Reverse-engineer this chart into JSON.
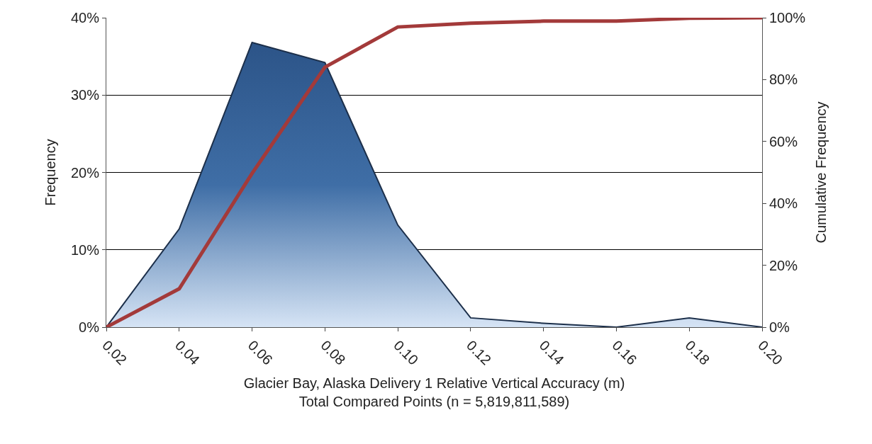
{
  "chart_data": {
    "type": "area",
    "xlabel": "Glacier Bay, Alaska Delivery 1 Relative Vertical Accuracy (m)\nTotal Compared Points (n = 5,819,811,589)",
    "ylabel": "Frequency",
    "y2label": "Cumulative Frequency",
    "categories": [
      "0.02",
      "0.04",
      "0.06",
      "0.08",
      "0.10",
      "0.12",
      "0.14",
      "0.16",
      "0.18",
      "0.20"
    ],
    "series": [
      {
        "axis": "y",
        "color": "#3f6ea6",
        "values": [
          0,
          12.7,
          36.8,
          34.2,
          13.2,
          1.2,
          0.5,
          0,
          1.2,
          0
        ]
      },
      {
        "type": "line",
        "axis": "y2",
        "color": "#a33a3a",
        "values": [
          0,
          12.4,
          49.7,
          84,
          97,
          98.2,
          98.9,
          98.9,
          99.8,
          100
        ]
      }
    ],
    "ylim": [
      0,
      40
    ],
    "yticks": [
      {
        "value": 0,
        "label": "0%"
      },
      {
        "value": 10,
        "label": "10%"
      },
      {
        "value": 20,
        "label": "20%"
      },
      {
        "value": 30,
        "label": "30%"
      },
      {
        "value": 40,
        "label": "40%"
      }
    ],
    "y2lim": [
      0,
      100
    ],
    "y2ticks": [
      {
        "value": 0,
        "label": "0%"
      },
      {
        "value": 20,
        "label": "20%"
      },
      {
        "value": 40,
        "label": "40%"
      },
      {
        "value": 60,
        "label": "60%"
      },
      {
        "value": 80,
        "label": "80%"
      },
      {
        "value": 100,
        "label": "100%"
      }
    ],
    "grid": "y",
    "marker": "none",
    "line_style": "solid"
  }
}
